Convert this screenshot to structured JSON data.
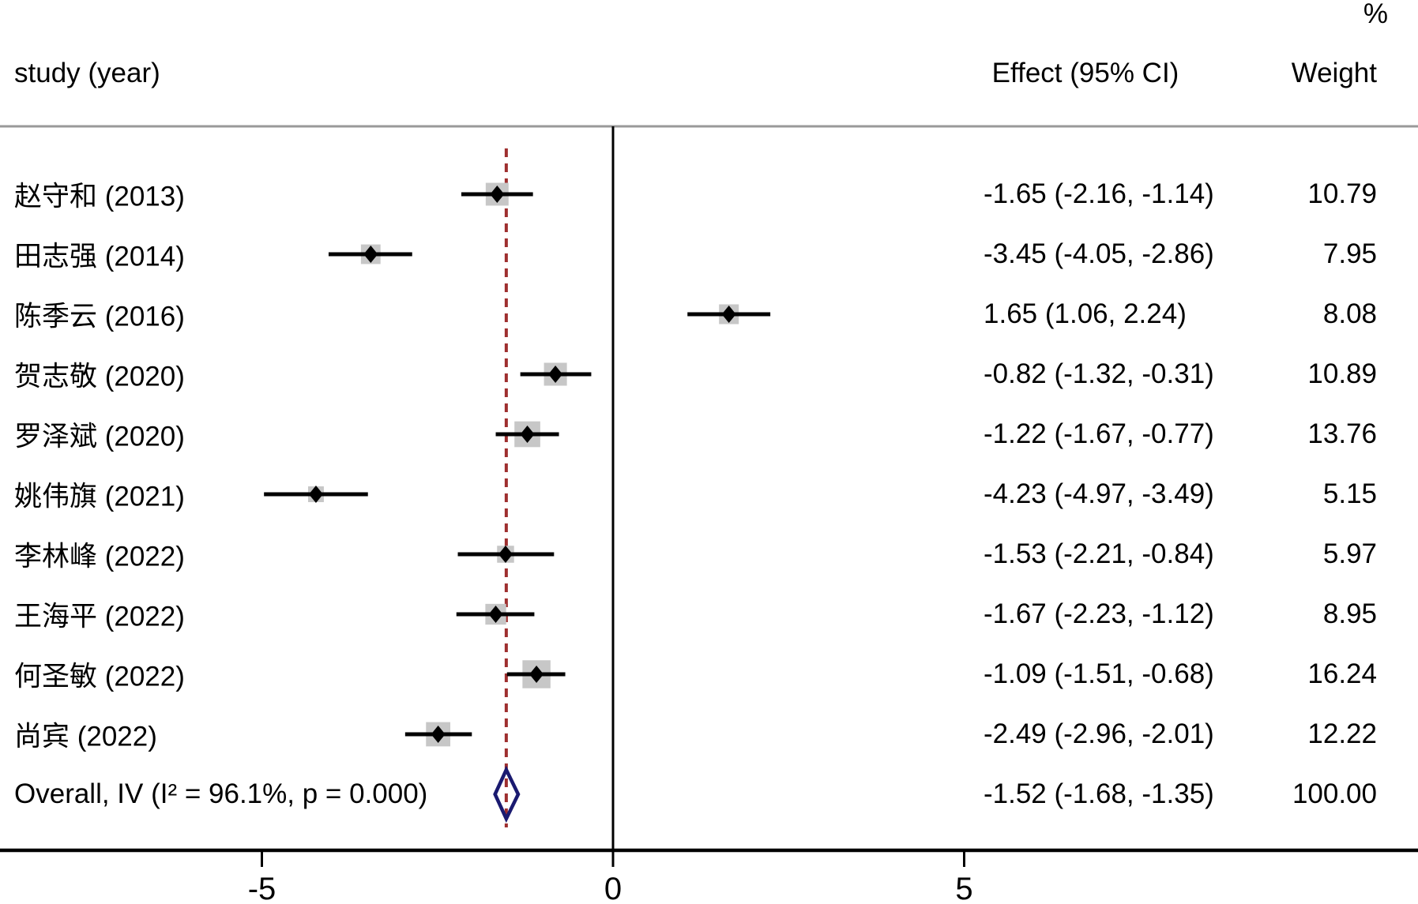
{
  "header": {
    "percent": "%",
    "study_col": "study (year)",
    "effect_col": "Effect (95% CI)",
    "weight_col": "Weight"
  },
  "chart_data": {
    "type": "forest",
    "title": "",
    "xlabel": "",
    "x_axis": {
      "ticks": [
        -5,
        0,
        5
      ],
      "tick_labels": [
        "-5",
        "0",
        "5"
      ],
      "zero_line": 0
    },
    "studies": [
      {
        "label": "赵守和 (2013)",
        "effect": -1.65,
        "ci_low": -2.16,
        "ci_high": -1.14,
        "effect_text": "-1.65 (-2.16, -1.14)",
        "weight": 10.79,
        "weight_text": "10.79"
      },
      {
        "label": "田志强 (2014)",
        "effect": -3.45,
        "ci_low": -4.05,
        "ci_high": -2.86,
        "effect_text": "-3.45 (-4.05, -2.86)",
        "weight": 7.95,
        "weight_text": "7.95"
      },
      {
        "label": "陈季云 (2016)",
        "effect": 1.65,
        "ci_low": 1.06,
        "ci_high": 2.24,
        "effect_text": "1.65 (1.06, 2.24)",
        "weight": 8.08,
        "weight_text": "8.08"
      },
      {
        "label": "贺志敬 (2020)",
        "effect": -0.82,
        "ci_low": -1.32,
        "ci_high": -0.31,
        "effect_text": "-0.82 (-1.32, -0.31)",
        "weight": 10.89,
        "weight_text": "10.89"
      },
      {
        "label": "罗泽斌 (2020)",
        "effect": -1.22,
        "ci_low": -1.67,
        "ci_high": -0.77,
        "effect_text": "-1.22 (-1.67, -0.77)",
        "weight": 13.76,
        "weight_text": "13.76"
      },
      {
        "label": "姚伟旗 (2021)",
        "effect": -4.23,
        "ci_low": -4.97,
        "ci_high": -3.49,
        "effect_text": "-4.23 (-4.97, -3.49)",
        "weight": 5.15,
        "weight_text": "5.15"
      },
      {
        "label": "李林峰 (2022)",
        "effect": -1.53,
        "ci_low": -2.21,
        "ci_high": -0.84,
        "effect_text": "-1.53 (-2.21, -0.84)",
        "weight": 5.97,
        "weight_text": "5.97"
      },
      {
        "label": "王海平 (2022)",
        "effect": -1.67,
        "ci_low": -2.23,
        "ci_high": -1.12,
        "effect_text": "-1.67 (-2.23, -1.12)",
        "weight": 8.95,
        "weight_text": "8.95"
      },
      {
        "label": "何圣敏 (2022)",
        "effect": -1.09,
        "ci_low": -1.51,
        "ci_high": -0.68,
        "effect_text": "-1.09 (-1.51, -0.68)",
        "weight": 16.24,
        "weight_text": "16.24"
      },
      {
        "label": "尚宾 (2022)",
        "effect": -2.49,
        "ci_low": -2.96,
        "ci_high": -2.01,
        "effect_text": "-2.49 (-2.96, -2.01)",
        "weight": 12.22,
        "weight_text": "12.22"
      }
    ],
    "overall": {
      "label": "Overall, IV (I² = 96.1%, p = 0.000)",
      "effect": -1.52,
      "ci_low": -1.68,
      "ci_high": -1.35,
      "effect_text": "-1.52 (-1.68, -1.35)",
      "weight_text": "100.00"
    }
  },
  "colors": {
    "ci_line": "#000000",
    "weight_box": "#c7c7c7",
    "point_marker": "#000000",
    "overall_diamond": "#1a1a70",
    "dashed_line": "#9e2f2f",
    "header_rule": "#999999",
    "axis": "#000000",
    "text": "#000000"
  }
}
